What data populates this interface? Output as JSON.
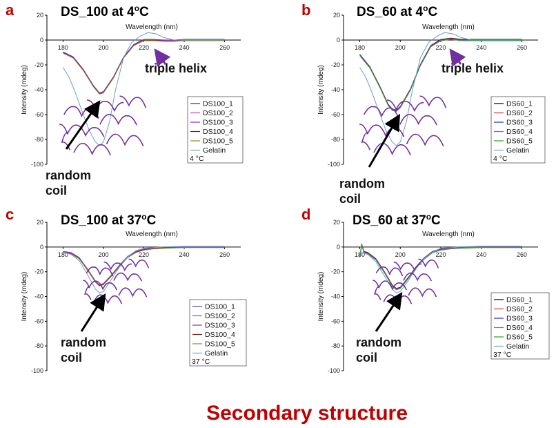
{
  "footer_title": "Secondary structure",
  "colors": {
    "letter": "#c00000",
    "footer": "#c00000",
    "arrow_black": "#000000",
    "arrow_purple": "#7030a0",
    "coil": "#7030a0",
    "gelatin": "#6a9fd2"
  },
  "chart_data": [
    {
      "panel": "a",
      "type": "line",
      "title": "DS_100 at 4oC",
      "xlabel": "Wavelength (nm)",
      "ylabel": "Intensity (mdeg)",
      "xlim": [
        172,
        268
      ],
      "ylim": [
        -100,
        20
      ],
      "xticks": [
        180,
        200,
        220,
        240,
        260
      ],
      "yticks": [
        20,
        0,
        -20,
        -40,
        -60,
        -80,
        -100
      ],
      "legend_temp": "4 °C",
      "annotations": [
        "triple helix",
        "random coil"
      ],
      "sample_curve": {
        "x": [
          180,
          185,
          190,
          195,
          198,
          200,
          205,
          210,
          215,
          220,
          225,
          230,
          235,
          240,
          250,
          260
        ],
        "y": [
          -10,
          -14,
          -24,
          -37,
          -43,
          -42,
          -30,
          -14,
          -4,
          0,
          0,
          -0.5,
          -0.5,
          0,
          0,
          0
        ]
      },
      "gelatin_curve": {
        "x": [
          180,
          183,
          186,
          190,
          193,
          196,
          198,
          200,
          203,
          206,
          210,
          214,
          218,
          222,
          226,
          230,
          235,
          240,
          250,
          260
        ],
        "y": [
          -22,
          -30,
          -42,
          -60,
          -73,
          -82,
          -85,
          -82,
          -66,
          -40,
          -14,
          -2,
          3,
          6,
          5,
          2,
          0,
          0,
          0,
          0
        ]
      },
      "series": [
        {
          "name": "DS100_1",
          "color": "#2b2b9a"
        },
        {
          "name": "DS100_2",
          "color": "#c040c0"
        },
        {
          "name": "DS100_3",
          "color": "#8a30c0"
        },
        {
          "name": "DS100_4",
          "color": "#7a1f1f"
        },
        {
          "name": "DS100_5",
          "color": "#8a8a1a"
        },
        {
          "name": "Gelatin",
          "color": "#6a9fd2"
        }
      ]
    },
    {
      "panel": "b",
      "type": "line",
      "title": "DS_60 at 4oC",
      "xlabel": "Wavelength (nm)",
      "ylabel": "Intensity (mdeg)",
      "xlim": [
        172,
        268
      ],
      "ylim": [
        -100,
        20
      ],
      "xticks": [
        180,
        200,
        220,
        240,
        260
      ],
      "yticks": [
        20,
        0,
        -20,
        -40,
        -60,
        -80,
        -100
      ],
      "legend_temp": "4 °C",
      "annotations": [
        "triple helix",
        "random coil"
      ],
      "sample_curve": {
        "x": [
          180,
          185,
          190,
          194,
          196,
          198,
          200,
          205,
          210,
          215,
          220,
          225,
          230,
          240,
          250,
          260
        ],
        "y": [
          -12,
          -22,
          -38,
          -52,
          -56,
          -57,
          -54,
          -40,
          -20,
          -5,
          0,
          1,
          0,
          0,
          0,
          0
        ]
      },
      "gelatin_curve": {
        "x": [
          180,
          183,
          186,
          190,
          193,
          196,
          198,
          200,
          203,
          206,
          210,
          214,
          218,
          222,
          226,
          230,
          235,
          240,
          250,
          260
        ],
        "y": [
          -22,
          -30,
          -42,
          -60,
          -73,
          -82,
          -85,
          -82,
          -66,
          -40,
          -14,
          -2,
          3,
          6,
          5,
          2,
          0,
          0,
          0,
          0
        ]
      },
      "series": [
        {
          "name": "DS60_1",
          "color": "#000000"
        },
        {
          "name": "DS60_2",
          "color": "#d03030"
        },
        {
          "name": "DS60_3",
          "color": "#2a2ad0"
        },
        {
          "name": "DS60_4",
          "color": "#d040d0"
        },
        {
          "name": "DS60_5",
          "color": "#20a020"
        },
        {
          "name": "Gelatin",
          "color": "#6a9fd2"
        }
      ]
    },
    {
      "panel": "c",
      "type": "line",
      "title": "DS_100 at 37oC",
      "xlabel": "Wavelength (nm)",
      "ylabel": "Intensity (mdeg)",
      "xlim": [
        172,
        268
      ],
      "ylim": [
        -100,
        20
      ],
      "xticks": [
        180,
        200,
        220,
        240,
        260
      ],
      "yticks": [
        20,
        0,
        -20,
        -40,
        -60,
        -80,
        -100
      ],
      "legend_temp": "37 °C",
      "annotations": [
        "random coil"
      ],
      "sample_curve": {
        "x": [
          180,
          184,
          188,
          192,
          196,
          198,
          200,
          204,
          208,
          212,
          216,
          220,
          225,
          230,
          240,
          250,
          260
        ],
        "y": [
          -4,
          -5,
          -9,
          -18,
          -28,
          -31,
          -30,
          -23,
          -15,
          -8,
          -4,
          -2,
          -1,
          -0.5,
          0,
          0,
          0
        ]
      },
      "gelatin_curve": {
        "x": [
          180,
          184,
          188,
          192,
          196,
          198,
          200,
          204,
          208,
          212,
          216,
          220,
          225,
          230,
          240,
          250,
          260
        ],
        "y": [
          -4,
          -6,
          -11,
          -22,
          -34,
          -37,
          -36,
          -26,
          -16,
          -8,
          -3,
          -1,
          -0.5,
          0,
          0,
          0,
          0
        ]
      },
      "series": [
        {
          "name": "DS100_1",
          "color": "#4a4aaa"
        },
        {
          "name": "DS100_2",
          "color": "#b040b0"
        },
        {
          "name": "DS100_3",
          "color": "#8a30c0"
        },
        {
          "name": "DS100_4",
          "color": "#7a1f1f"
        },
        {
          "name": "DS100_5",
          "color": "#8a8a1a"
        },
        {
          "name": "Gelatin",
          "color": "#6a9fd2"
        }
      ]
    },
    {
      "panel": "d",
      "type": "line",
      "title": "DS_60 at 37oC",
      "xlabel": "Wavelength (nm)",
      "ylabel": "Intensity (mdeg)",
      "xlim": [
        172,
        268
      ],
      "ylim": [
        -100,
        20
      ],
      "xticks": [
        180,
        200,
        220,
        240,
        260
      ],
      "yticks": [
        20,
        0,
        -20,
        -40,
        -60,
        -80,
        -100
      ],
      "legend_temp": "37 °C",
      "annotations": [
        "random coil"
      ],
      "sample_curve": {
        "x": [
          180,
          181,
          182,
          184,
          188,
          192,
          196,
          198,
          200,
          204,
          208,
          212,
          216,
          220,
          225,
          230,
          240,
          250,
          260
        ],
        "y": [
          -8,
          2,
          -4,
          -5,
          -10,
          -20,
          -31,
          -34,
          -33,
          -25,
          -16,
          -9,
          -4,
          -2,
          -1,
          -0.5,
          0,
          0,
          0
        ]
      },
      "gelatin_curve": {
        "x": [
          180,
          184,
          188,
          192,
          196,
          198,
          200,
          204,
          208,
          212,
          216,
          220,
          225,
          230,
          240,
          250,
          260
        ],
        "y": [
          -4,
          -6,
          -12,
          -23,
          -34,
          -37,
          -36,
          -27,
          -17,
          -9,
          -4,
          -1,
          -0.5,
          0,
          0,
          0,
          0
        ]
      },
      "series": [
        {
          "name": "DS60_1",
          "color": "#000000"
        },
        {
          "name": "DS60_2",
          "color": "#d03030"
        },
        {
          "name": "DS60_3",
          "color": "#2a2ad0"
        },
        {
          "name": "DS60_4",
          "color": "#d040d0"
        },
        {
          "name": "DS60_5",
          "color": "#20a020"
        },
        {
          "name": "Gelatin",
          "color": "#6a9fd2"
        }
      ]
    }
  ]
}
